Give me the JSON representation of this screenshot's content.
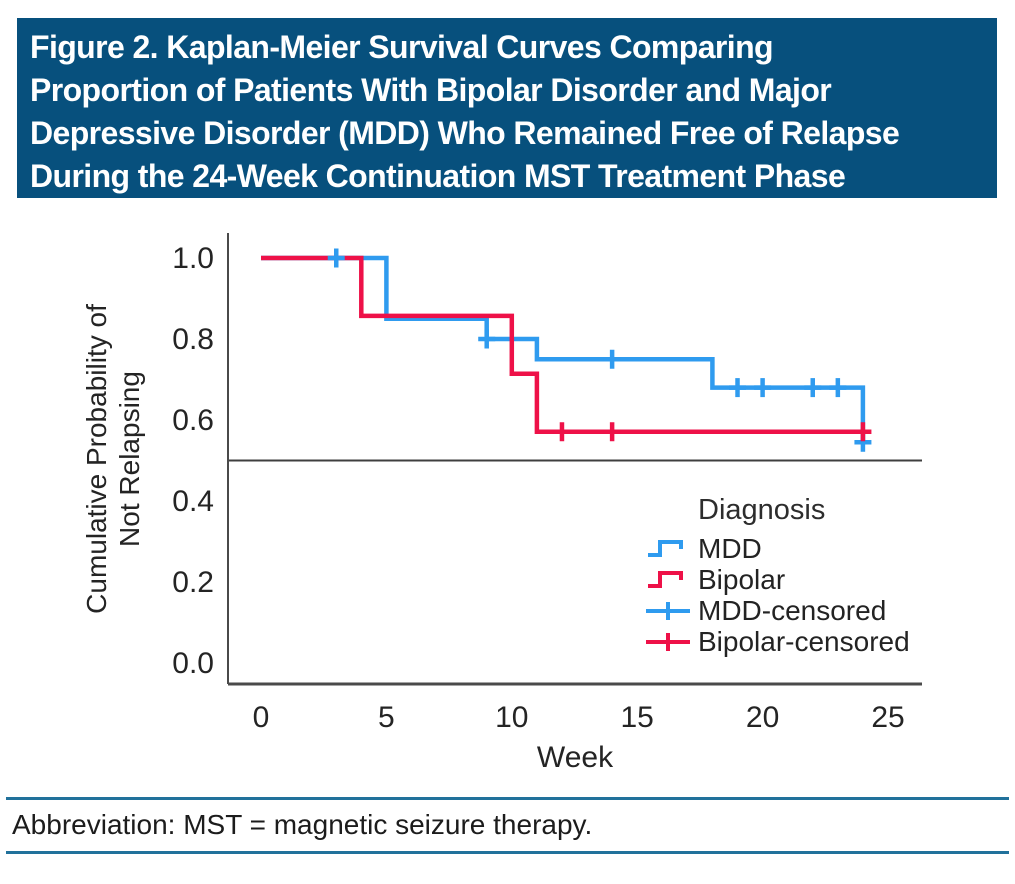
{
  "figure": {
    "title_lines": [
      "Figure 2. Kaplan-Meier Survival Curves Comparing",
      "Proportion of Patients With Bipolar Disorder and Major",
      "Depressive Disorder (MDD) Who Remained Free of Relapse",
      "During the 24-Week Continuation MST Treatment Phase"
    ],
    "title_bar_color": "#07507d",
    "footer_note": "Abbreviation: MST = magnetic seizure therapy.",
    "footer_rule_color": "#21719b"
  },
  "chart_data": {
    "type": "line",
    "variant": "kaplan-meier-step",
    "title": "",
    "xlabel": "Week",
    "ylabel": "Cumulative Probability of Not Relapsing",
    "ylabel_lines": [
      "Cumulative Probability of",
      "Not Relapsing"
    ],
    "xlim": [
      0,
      25
    ],
    "ylim": [
      0.0,
      1.0
    ],
    "xticks": [
      "0",
      "5",
      "10",
      "15",
      "20",
      "25"
    ],
    "yticks": [
      "1.0",
      "0.8",
      "0.6",
      "0.4",
      "0.2",
      "0.0"
    ],
    "grid": false,
    "reference_line_y": 0.5,
    "axis_color": "#4a4a4a",
    "text_color": "#242424",
    "legend": {
      "position": "inside-lower-right",
      "title": "Diagnosis",
      "entries": [
        {
          "label": "MDD",
          "symbol": "step",
          "color": "#2f9bef"
        },
        {
          "label": "Bipolar",
          "symbol": "step",
          "color": "#ee1148"
        },
        {
          "label": "MDD-censored",
          "symbol": "censor",
          "color": "#2f9bef"
        },
        {
          "label": "Bipolar-censored",
          "symbol": "censor",
          "color": "#ee1148"
        }
      ]
    },
    "series": [
      {
        "name": "MDD",
        "color": "#2f9bef",
        "steps": [
          [
            0,
            1.0
          ],
          [
            5,
            1.0
          ],
          [
            5,
            0.85
          ],
          [
            9,
            0.85
          ],
          [
            9,
            0.8
          ],
          [
            11,
            0.8
          ],
          [
            11,
            0.75
          ],
          [
            18,
            0.75
          ],
          [
            18,
            0.68
          ],
          [
            24,
            0.68
          ],
          [
            24,
            0.545
          ]
        ],
        "censored": [
          [
            3,
            1.0
          ],
          [
            9,
            0.8
          ],
          [
            14,
            0.75
          ],
          [
            19,
            0.68
          ],
          [
            20,
            0.68
          ],
          [
            22,
            0.68
          ],
          [
            23,
            0.68
          ],
          [
            24,
            0.545
          ]
        ]
      },
      {
        "name": "Bipolar",
        "color": "#ee1148",
        "steps": [
          [
            0,
            1.0
          ],
          [
            4,
            1.0
          ],
          [
            4,
            0.857
          ],
          [
            10,
            0.857
          ],
          [
            10,
            0.714
          ],
          [
            11,
            0.714
          ],
          [
            11,
            0.571
          ],
          [
            24,
            0.571
          ]
        ],
        "censored": [
          [
            12,
            0.571
          ],
          [
            14,
            0.571
          ],
          [
            24,
            0.571
          ]
        ]
      }
    ]
  }
}
